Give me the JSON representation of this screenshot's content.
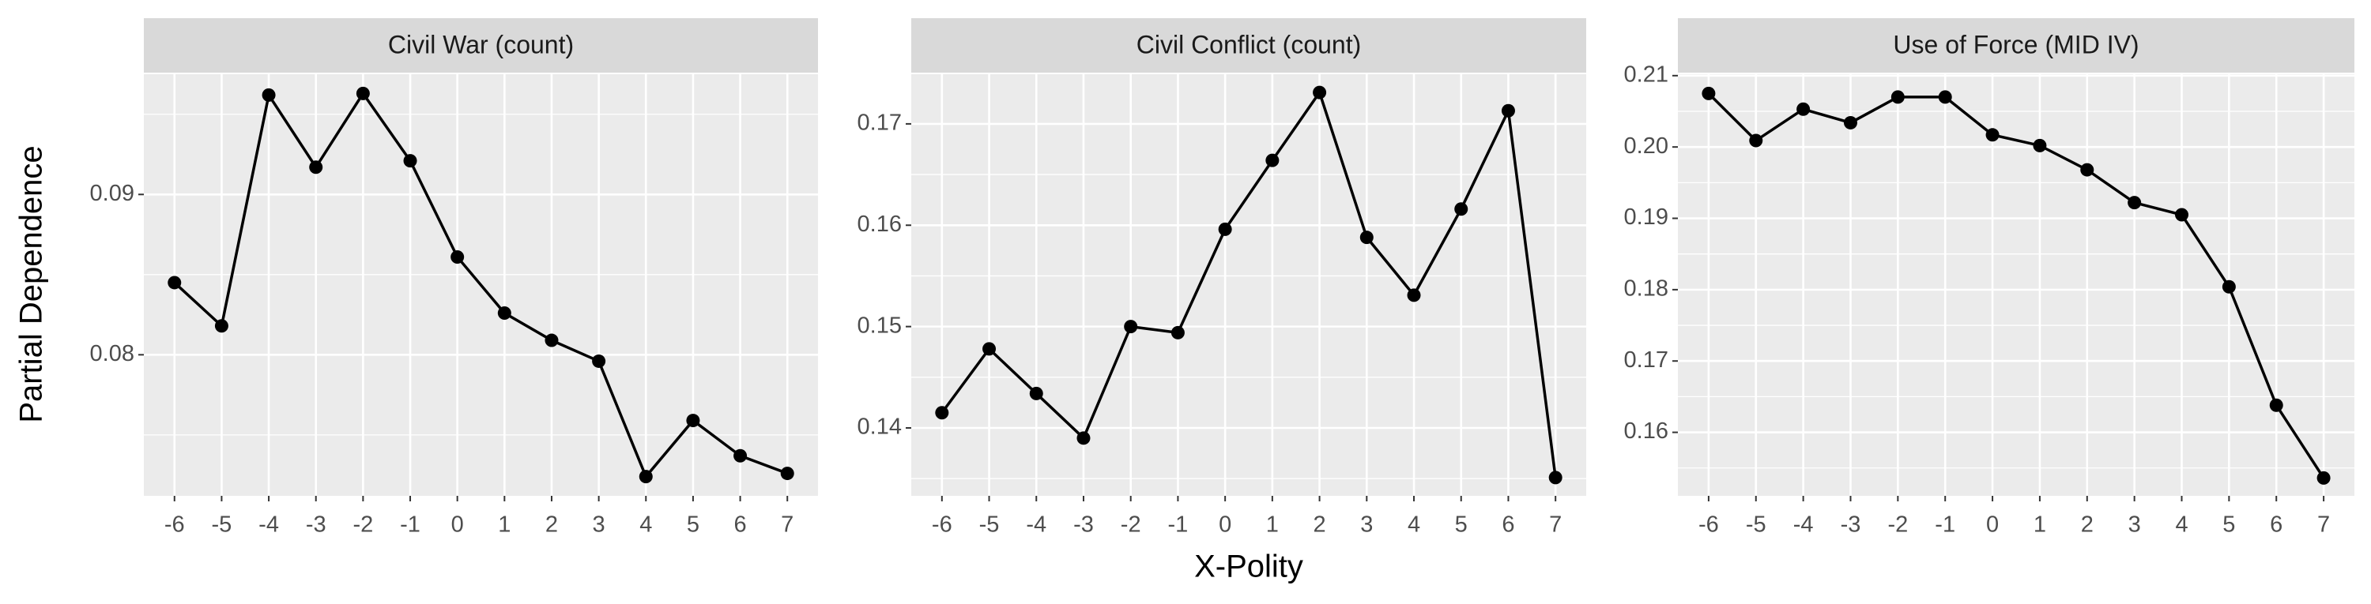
{
  "y_label": "Partial Dependence",
  "x_label": "X-Polity",
  "chart_data": [
    {
      "type": "line",
      "title": "Civil War (count)",
      "color": "#000000",
      "x": [
        -6,
        -5,
        -4,
        -3,
        -2,
        -1,
        0,
        1,
        2,
        3,
        4,
        5,
        6,
        7
      ],
      "values": [
        0.0845,
        0.0818,
        0.0962,
        0.0917,
        0.0963,
        0.0921,
        0.0861,
        0.0826,
        0.0809,
        0.0796,
        0.0724,
        0.0759,
        0.0737,
        0.0726
      ],
      "xlim": [
        -6.65,
        7.65
      ],
      "xticks": [
        -6,
        -5,
        -4,
        -3,
        -2,
        -1,
        0,
        1,
        2,
        3,
        4,
        5,
        6,
        7
      ],
      "ylim": [
        0.0712,
        0.0975
      ],
      "yticks": [
        0.08,
        0.09
      ],
      "grid": true
    },
    {
      "type": "line",
      "title": "Civil Conflict (count)",
      "color": "#000000",
      "x": [
        -6,
        -5,
        -4,
        -3,
        -2,
        -1,
        0,
        1,
        2,
        3,
        4,
        5,
        6,
        7
      ],
      "values": [
        0.1415,
        0.1478,
        0.1434,
        0.139,
        0.15,
        0.1494,
        0.1596,
        0.1664,
        0.1731,
        0.1588,
        0.1531,
        0.1616,
        0.1713,
        0.1351
      ],
      "xlim": [
        -6.65,
        7.65
      ],
      "xticks": [
        -6,
        -5,
        -4,
        -3,
        -2,
        -1,
        0,
        1,
        2,
        3,
        4,
        5,
        6,
        7
      ],
      "ylim": [
        0.1333,
        0.1749
      ],
      "yticks": [
        0.14,
        0.15,
        0.16,
        0.17
      ],
      "grid": true
    },
    {
      "type": "line",
      "title": "Use of Force (MID IV)",
      "color": "#000000",
      "x": [
        -6,
        -5,
        -4,
        -3,
        -2,
        -1,
        0,
        1,
        2,
        3,
        4,
        5,
        6,
        7
      ],
      "values": [
        0.2075,
        0.2009,
        0.2053,
        0.2034,
        0.207,
        0.207,
        0.2017,
        0.2002,
        0.1968,
        0.1922,
        0.1905,
        0.1804,
        0.1638,
        0.1536
      ],
      "xlim": [
        -6.65,
        7.65
      ],
      "xticks": [
        -6,
        -5,
        -4,
        -3,
        -2,
        -1,
        0,
        1,
        2,
        3,
        4,
        5,
        6,
        7
      ],
      "ylim": [
        0.1511,
        0.2102
      ],
      "yticks": [
        0.16,
        0.17,
        0.18,
        0.19,
        {
          "value": 0.2,
          "label": "0.20"
        },
        0.21
      ],
      "grid": true
    }
  ]
}
